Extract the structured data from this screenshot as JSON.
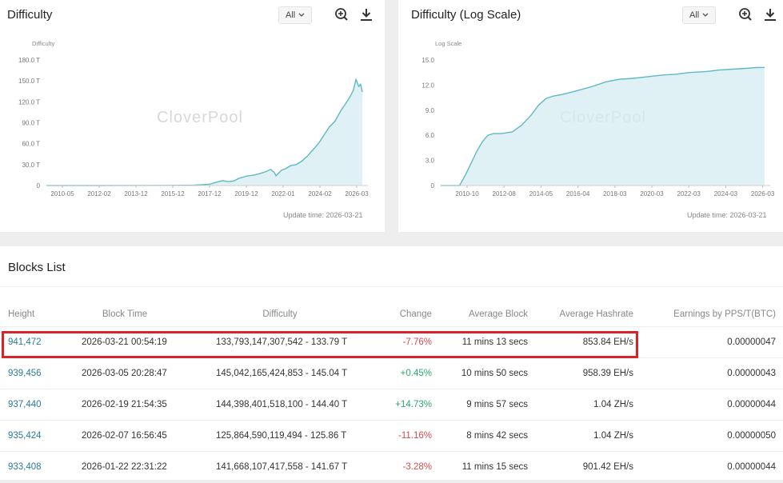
{
  "difficulty_card": {
    "title": "Difficulty",
    "range_selected": "All",
    "zoom_icon": "zoom-in-icon",
    "download_icon": "download-icon",
    "update_time": "Update time: 2026-03-21",
    "watermark": "CloverPool"
  },
  "log_card": {
    "title": "Difficulty (Log Scale)",
    "range_selected": "All",
    "zoom_icon": "zoom-in-icon",
    "download_icon": "download-icon",
    "update_time": "Update time: 2026-03-21",
    "watermark": "CloverPool"
  },
  "chart_data": [
    {
      "type": "area",
      "title": "Difficulty",
      "ylabel": "Difficulty",
      "y_ticks": [
        "0",
        "30.0 T",
        "60.0 T",
        "90.0 T",
        "120.0 T",
        "150.0 T",
        "180.0 T"
      ],
      "x_ticks": [
        "2010-05",
        "2012-02",
        "2013-12",
        "2015-12",
        "2017-12",
        "2019-12",
        "2022-01",
        "2024-02",
        "2026-03"
      ],
      "ylim": [
        0,
        180
      ],
      "x": [
        2009.0,
        2010.4,
        2012.1,
        2013.9,
        2015.9,
        2016.5,
        2017.0,
        2017.5,
        2017.9,
        2018.3,
        2018.6,
        2018.9,
        2019.2,
        2019.5,
        2019.9,
        2020.3,
        2020.6,
        2020.9,
        2021.2,
        2021.4,
        2021.5,
        2021.8,
        2022.0,
        2022.3,
        2022.6,
        2022.9,
        2023.2,
        2023.5,
        2023.8,
        2024.1,
        2024.4,
        2024.7,
        2025.0,
        2025.3,
        2025.5,
        2025.7,
        2025.85,
        2026.0,
        2026.1,
        2026.2
      ],
      "values": [
        0,
        0,
        0,
        0.1,
        0.2,
        0.3,
        0.5,
        1.2,
        2.0,
        5.0,
        7.0,
        5.5,
        6.5,
        10.5,
        13.5,
        15.0,
        17.0,
        19.5,
        23.0,
        19.0,
        14.0,
        22.0,
        24.0,
        28.5,
        30.0,
        35.0,
        42.0,
        51.0,
        60.0,
        72.0,
        84.0,
        92.0,
        106.0,
        118.0,
        126.0,
        136.0,
        152.0,
        142.0,
        145.0,
        134.0
      ]
    },
    {
      "type": "area",
      "title": "Difficulty (Log Scale)",
      "ylabel": "Log Scale",
      "y_ticks": [
        "0",
        "3.0",
        "6.0",
        "9.0",
        "12.0",
        "15.0"
      ],
      "x_ticks": [
        "2010-10",
        "2012-08",
        "2014-05",
        "2016-04",
        "2018-03",
        "2020-03",
        "2022-03",
        "2024-03",
        "2026-03"
      ],
      "ylim": [
        0,
        15
      ],
      "x": [
        2009.0,
        2009.5,
        2010.0,
        2010.3,
        2010.6,
        2010.9,
        2011.2,
        2011.5,
        2011.8,
        2012.2,
        2012.8,
        2013.3,
        2013.8,
        2014.2,
        2014.6,
        2015.0,
        2015.5,
        2016.2,
        2017.0,
        2017.8,
        2018.5,
        2019.2,
        2020.0,
        2020.8,
        2021.5,
        2022.2,
        2023.0,
        2023.8,
        2024.5,
        2025.2,
        2025.8,
        2026.2
      ],
      "values": [
        0,
        0,
        0,
        1.2,
        2.6,
        4.0,
        5.2,
        6.0,
        6.2,
        6.2,
        6.4,
        7.2,
        8.4,
        9.6,
        10.4,
        10.7,
        10.9,
        11.3,
        11.8,
        12.4,
        12.7,
        12.8,
        13.0,
        13.2,
        13.3,
        13.5,
        13.6,
        13.8,
        13.9,
        14.0,
        14.1,
        14.1
      ]
    }
  ],
  "blocks": {
    "title": "Blocks List",
    "headers": [
      "Height",
      "Block Time",
      "Difficulty",
      "Change",
      "Average Block",
      "Average Hashrate",
      "Earnings by PPS/T(BTC)"
    ],
    "rows": [
      {
        "height": "941,472",
        "time": "2026-03-21 00:54:19",
        "difficulty": "133,793,147,307,542 - 133.79 T",
        "change": "-7.76%",
        "change_dir": "neg",
        "avg_block": "11 mins 13 secs",
        "hashrate": "853.84 EH/s",
        "earnings": "0.00000047"
      },
      {
        "height": "939,456",
        "time": "2026-03-05 20:28:47",
        "difficulty": "145,042,165,424,853 - 145.04 T",
        "change": "+0.45%",
        "change_dir": "pos",
        "avg_block": "10 mins 50 secs",
        "hashrate": "958.39 EH/s",
        "earnings": "0.00000043"
      },
      {
        "height": "937,440",
        "time": "2026-02-19 21:54:35",
        "difficulty": "144,398,401,518,100 - 144.40 T",
        "change": "+14.73%",
        "change_dir": "pos",
        "avg_block": "9 mins 57 secs",
        "hashrate": "1.04 ZH/s",
        "earnings": "0.00000044"
      },
      {
        "height": "935,424",
        "time": "2026-02-07 16:56:45",
        "difficulty": "125,864,590,119,494 - 125.86 T",
        "change": "-11.16%",
        "change_dir": "neg",
        "avg_block": "8 mins 42 secs",
        "hashrate": "1.04 ZH/s",
        "earnings": "0.00000050"
      },
      {
        "height": "933,408",
        "time": "2026-01-22 22:31:22",
        "difficulty": "141,668,107,417,558 - 141.67 T",
        "change": "-3.28%",
        "change_dir": "neg",
        "avg_block": "11 mins 15 secs",
        "hashrate": "901.42 EH/s",
        "earnings": "0.00000044"
      }
    ]
  },
  "colors": {
    "line": "#5fb8c4",
    "area": "#d6ecf1",
    "highlight_border": "#d8232a",
    "link": "#2a7a9a",
    "negative": "#d04c4c",
    "positive": "#2aa86e"
  }
}
